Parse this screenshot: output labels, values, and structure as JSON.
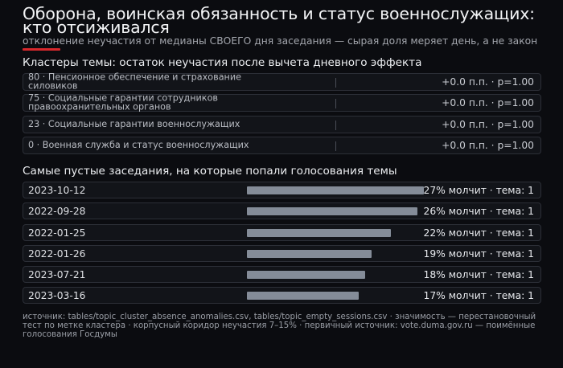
{
  "header": {
    "title": "Оборона, воинская обязанность и статус военнослужащих: кто отсиживался",
    "subtitle": "отклонение неучастия от медианы СВОЕГО дня заседания — сырая доля меряет день, а не закон",
    "accent_color": "#d8282c"
  },
  "clusters": {
    "heading": "Кластеры темы: остаток неучастия после вычета дневного эффекта",
    "rows": [
      {
        "label": "80 · Пенсионное обеспечение и страхование силовиков",
        "value": "+0.0 п.п. · p=1.00"
      },
      {
        "label": "75 · Социальные гарантии сотрудников правоохранительных органов",
        "value": "+0.0 п.п. · p=1.00"
      },
      {
        "label": "23 · Социальные гарантии военнослужащих",
        "value": "+0.0 п.п. · p=1.00"
      },
      {
        "label": "0 · Военная служба и статус военнослужащих",
        "value": "+0.0 п.п. · p=1.00"
      }
    ]
  },
  "sessions": {
    "heading": "Самые пустые заседания, на которые попали голосования темы",
    "rows": [
      {
        "date": "2023-10-12",
        "share": 27,
        "value": "27% молчит · тема: 1"
      },
      {
        "date": "2022-09-28",
        "share": 26,
        "value": "26% молчит · тема: 1"
      },
      {
        "date": "2022-01-25",
        "share": 22,
        "value": "22% молчит · тема: 1"
      },
      {
        "date": "2022-01-26",
        "share": 19,
        "value": "19% молчит · тема: 1"
      },
      {
        "date": "2023-07-21",
        "share": 18,
        "value": "18% молчит · тема: 1"
      },
      {
        "date": "2023-03-16",
        "share": 17,
        "value": "17% молчит · тема: 1"
      }
    ],
    "bar_color": "#848c98"
  },
  "footer": {
    "text": "источник: tables/topic_cluster_absence_anomalies.csv, tables/topic_empty_sessions.csv · значимость — перестановочный тест по метке кластера · корпусный коридор неучастия 7–15% · первичный источник: vote.duma.gov.ru — поимённые голосования Госдумы"
  }
}
